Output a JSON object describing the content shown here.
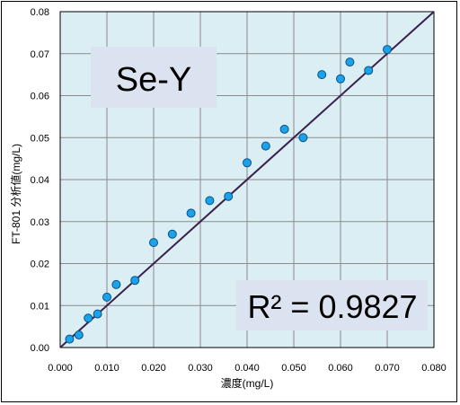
{
  "chart_data": {
    "type": "scatter",
    "title": "Se-Y",
    "xlabel": "濃度(mg/L)",
    "ylabel": "FT-801 分析値(mg/L)",
    "xlim": [
      0,
      0.08
    ],
    "ylim": [
      0,
      0.08
    ],
    "x_ticks": [
      "0.000",
      "0.010",
      "0.020",
      "0.030",
      "0.040",
      "0.050",
      "0.060",
      "0.070",
      "0.080"
    ],
    "y_ticks": [
      "0.00",
      "0.01",
      "0.02",
      "0.03",
      "0.04",
      "0.05",
      "0.06",
      "0.07",
      "0.08"
    ],
    "grid": true,
    "annotation": "R² = 0.9827",
    "points": [
      {
        "x": 0.002,
        "y": 0.002
      },
      {
        "x": 0.004,
        "y": 0.003
      },
      {
        "x": 0.006,
        "y": 0.007
      },
      {
        "x": 0.008,
        "y": 0.008
      },
      {
        "x": 0.01,
        "y": 0.012
      },
      {
        "x": 0.012,
        "y": 0.015
      },
      {
        "x": 0.016,
        "y": 0.016
      },
      {
        "x": 0.02,
        "y": 0.025
      },
      {
        "x": 0.024,
        "y": 0.027
      },
      {
        "x": 0.028,
        "y": 0.032
      },
      {
        "x": 0.032,
        "y": 0.035
      },
      {
        "x": 0.036,
        "y": 0.036
      },
      {
        "x": 0.04,
        "y": 0.044
      },
      {
        "x": 0.044,
        "y": 0.048
      },
      {
        "x": 0.048,
        "y": 0.052
      },
      {
        "x": 0.052,
        "y": 0.05
      },
      {
        "x": 0.056,
        "y": 0.065
      },
      {
        "x": 0.06,
        "y": 0.064
      },
      {
        "x": 0.062,
        "y": 0.068
      },
      {
        "x": 0.066,
        "y": 0.066
      },
      {
        "x": 0.07,
        "y": 0.071
      }
    ],
    "fit_line": {
      "x": [
        0.0,
        0.08
      ],
      "y": [
        0.0,
        0.08
      ]
    },
    "colors": {
      "plot_background": "#dbeef4",
      "marker_fill": "#1aa3e8",
      "marker_stroke": "#0a4f86",
      "fit_line": "#3a1f4d",
      "label_box": "#dbe3f1"
    }
  }
}
